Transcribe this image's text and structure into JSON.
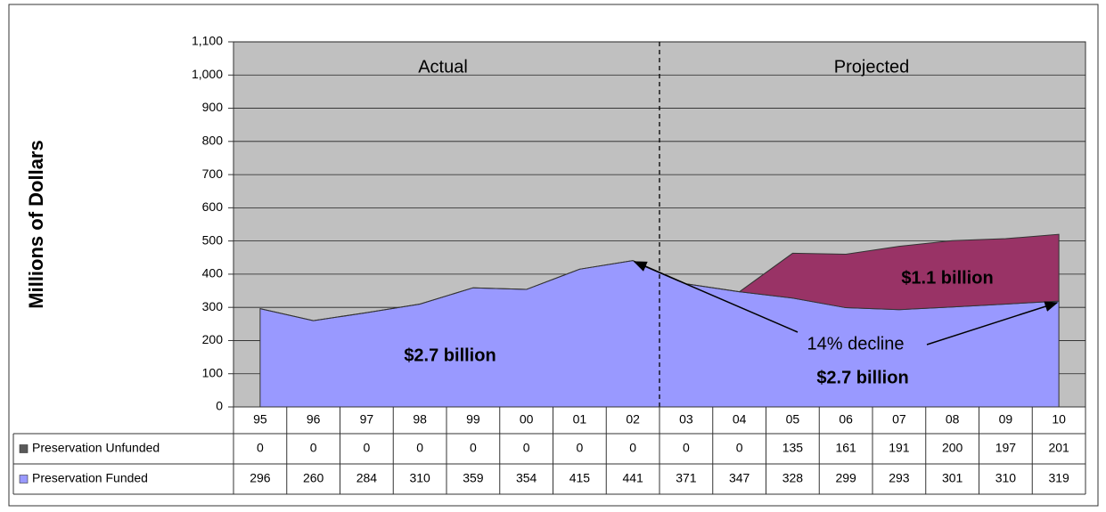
{
  "chart_data": {
    "type": "area",
    "stacked": true,
    "y_label": "Millions of Dollars",
    "categories": [
      "95",
      "96",
      "97",
      "98",
      "99",
      "00",
      "01",
      "02",
      "03",
      "04",
      "05",
      "06",
      "07",
      "08",
      "09",
      "10"
    ],
    "series": [
      {
        "name": "Preservation Funded",
        "color": "#9999ff",
        "legend_color": "#9999ff",
        "values": [
          296,
          260,
          284,
          310,
          359,
          354,
          415,
          441,
          371,
          347,
          328,
          299,
          293,
          301,
          310,
          319
        ]
      },
      {
        "name": "Preservation Unfunded",
        "color": "#993366",
        "legend_color": "#595959",
        "values": [
          0,
          0,
          0,
          0,
          0,
          0,
          0,
          0,
          0,
          0,
          135,
          161,
          191,
          200,
          197,
          201
        ]
      }
    ],
    "ylim": [
      0,
      1100
    ],
    "yticks": [
      0,
      100,
      200,
      300,
      400,
      500,
      600,
      700,
      800,
      900,
      {
        "value": 1000,
        "label": "1,000"
      },
      {
        "value": 1100,
        "label": "1,100"
      }
    ],
    "grid": true,
    "plot_background": "#c0c0c0",
    "annotations": [
      "Actual",
      "Projected",
      "$2.7 billion",
      "$1.1 billion",
      "14% decline",
      "$2.7 billion"
    ]
  }
}
